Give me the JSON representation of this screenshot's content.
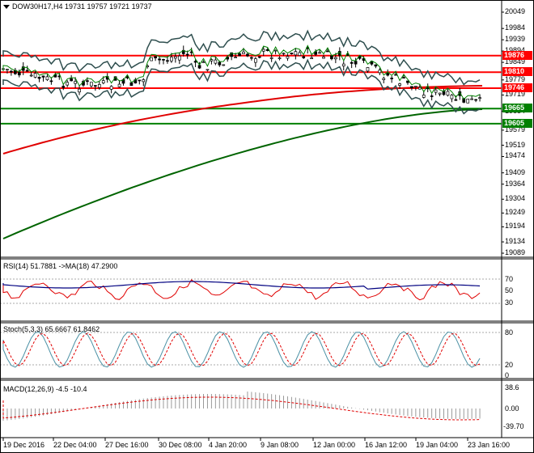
{
  "main_title": "DOW30H17,H4  19731 19757 19721 19737",
  "price_axis": [
    "20049",
    "19984",
    "19939",
    "19894",
    "19849",
    "19779",
    "19719",
    "19654",
    "19579",
    "19519",
    "19474",
    "19409",
    "19364",
    "19304",
    "19249",
    "19194",
    "19134",
    "19089"
  ],
  "levels": [
    {
      "label": "19876",
      "color": "#ff0000",
      "value": 19876
    },
    {
      "label": "19810",
      "color": "#ff0000",
      "value": 19810
    },
    {
      "label": "19746",
      "color": "#ff0000",
      "value": 19746
    },
    {
      "label": "19665",
      "color": "#008000",
      "value": 19665
    },
    {
      "label": "19605",
      "color": "#008000",
      "value": 19605
    }
  ],
  "rsi": {
    "title": "RSI(14) 51.7881  ->MA(18) 47.2900",
    "axis": [
      "70",
      "50",
      "30"
    ]
  },
  "stoch": {
    "title": "Stoch(5,3,3) 65.6667 61.8462",
    "axis": [
      "80",
      "20",
      "0"
    ]
  },
  "macd": {
    "title": "MACD(12,26,9) -4.5 -10.4",
    "axis": [
      "38.6",
      "0.00",
      "-39.70"
    ]
  },
  "time_axis": [
    "19 Dec 2016",
    "22 Dec 04:00",
    "27 Dec 16:00",
    "30 Dec 08:00",
    "4 Jan 20:00",
    "9 Jan 08:00",
    "12 Jan 00:00",
    "16 Jan 12:00",
    "19 Jan 04:00",
    "23 Jan 16:00"
  ],
  "colors": {
    "support": "#008000",
    "resistance": "#ff0000",
    "ma_long": "#006400",
    "ma_mid": "#e00000",
    "band": "#2f4f4f"
  }
}
